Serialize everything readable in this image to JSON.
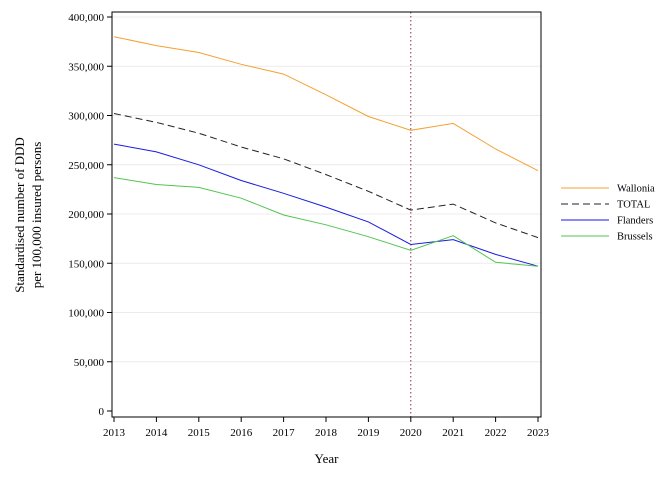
{
  "chart_data": {
    "type": "line",
    "title": "",
    "xlabel": "Year",
    "ylabel": [
      "Standardised number of DDD",
      "per 100,000 insured persons"
    ],
    "x": [
      2013,
      2014,
      2015,
      2016,
      2017,
      2018,
      2019,
      2020,
      2021,
      2022,
      2023
    ],
    "x_tick_labels": [
      "2013",
      "2014",
      "2015",
      "2016",
      "2017",
      "2018",
      "2019",
      "2020",
      "2021",
      "2022",
      "2023"
    ],
    "ylim": [
      0,
      400000
    ],
    "y_ticks": [
      0,
      50000,
      100000,
      150000,
      200000,
      250000,
      300000,
      350000,
      400000
    ],
    "y_tick_labels": [
      "0",
      "50,000",
      "100,000",
      "150,000",
      "200,000",
      "250,000",
      "300,000",
      "350,000",
      "400,000"
    ],
    "grid": "horizontal",
    "reference_line_x": 2020,
    "legend_position": "right",
    "series": [
      {
        "name": "Wallonia",
        "color": "#f5a030",
        "dash": "solid",
        "values": [
          380000,
          371000,
          364000,
          352000,
          342000,
          321000,
          299000,
          285000,
          292000,
          266000,
          244000
        ]
      },
      {
        "name": "TOTAL",
        "color": "#222222",
        "dash": "dashed",
        "values": [
          302000,
          293000,
          282000,
          268000,
          256000,
          240000,
          223000,
          204000,
          210000,
          191000,
          176000
        ]
      },
      {
        "name": "Flanders",
        "color": "#1a1ae0",
        "dash": "solid",
        "values": [
          271000,
          263000,
          250000,
          234000,
          221000,
          207000,
          192000,
          169000,
          174000,
          159000,
          147000
        ]
      },
      {
        "name": "Brussels",
        "color": "#52c452",
        "dash": "solid",
        "values": [
          237000,
          230000,
          227000,
          216000,
          199000,
          189000,
          177000,
          163000,
          178000,
          151000,
          147000
        ]
      }
    ]
  }
}
